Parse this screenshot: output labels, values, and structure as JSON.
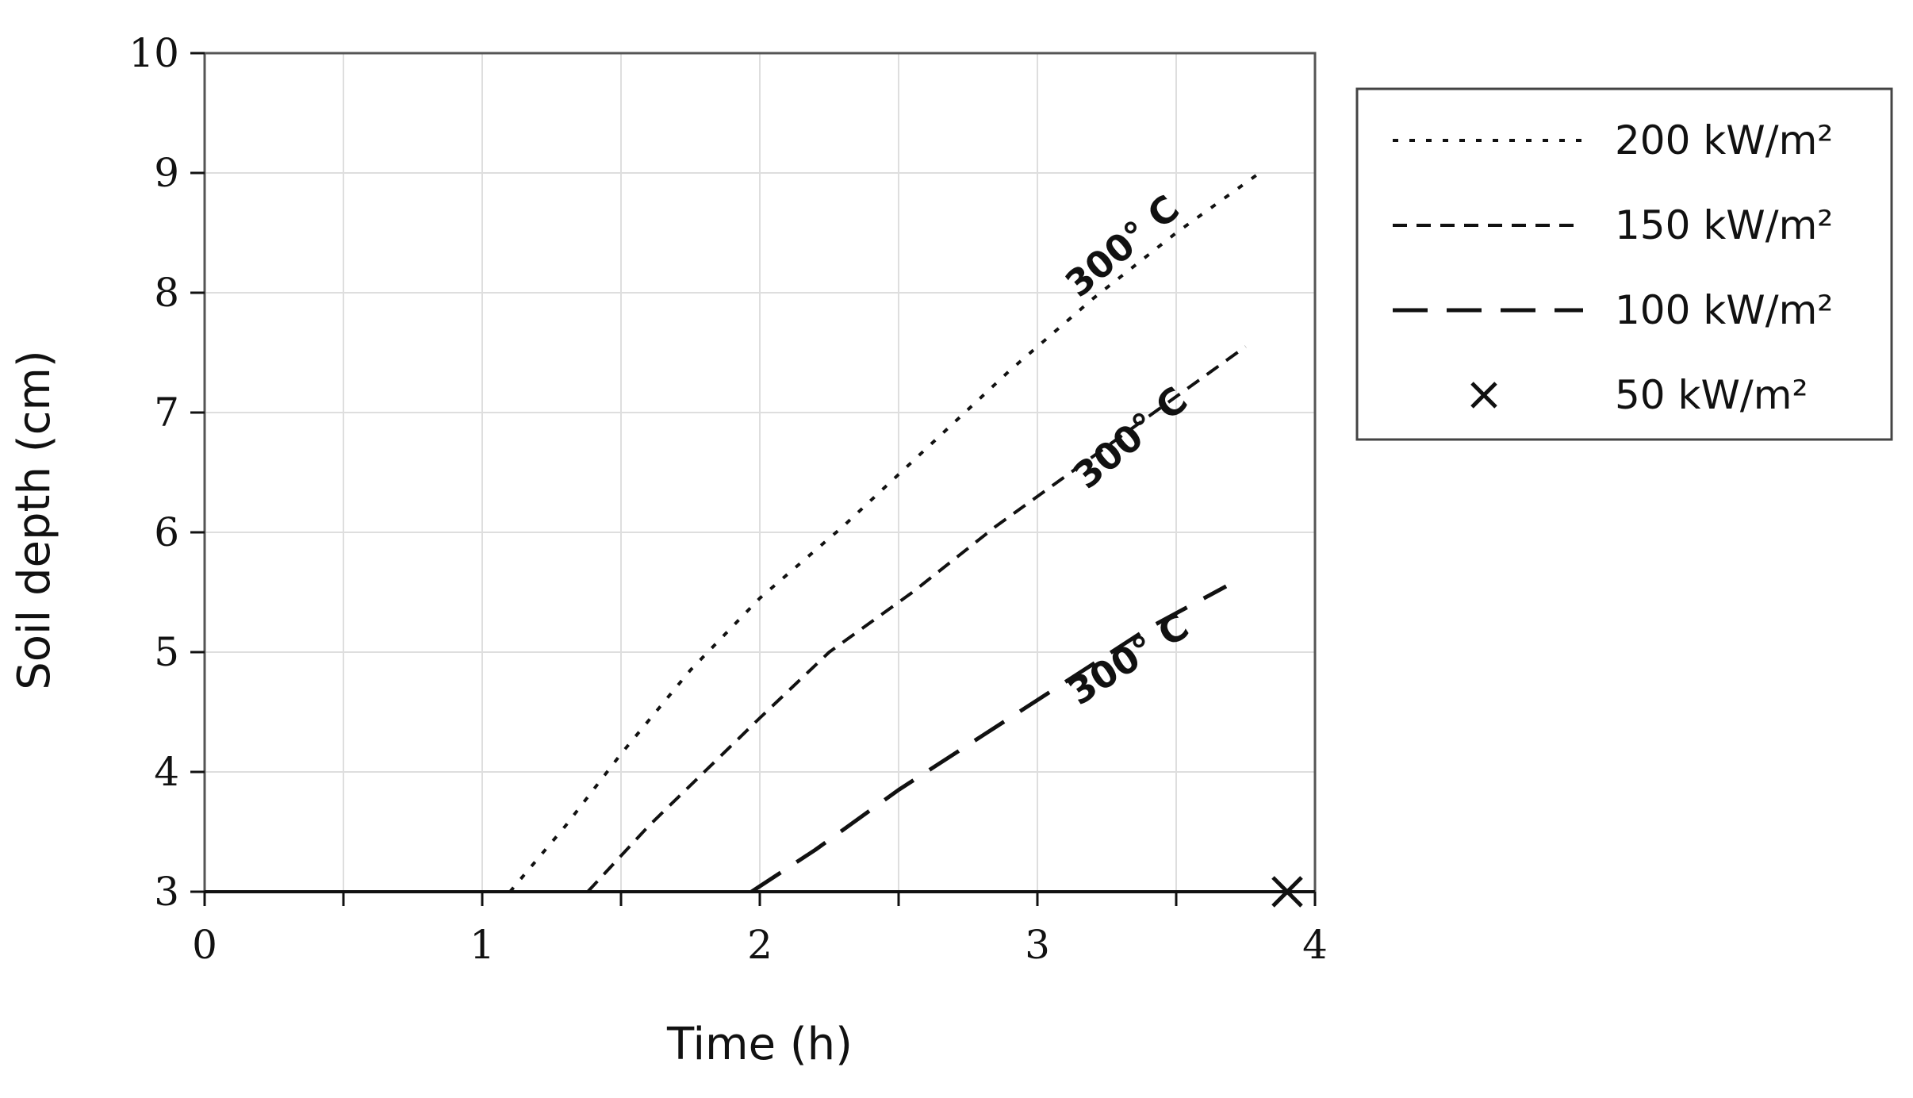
{
  "chart_data": {
    "type": "line",
    "title": "",
    "xlabel": "Time (h)",
    "ylabel": "Soil depth (cm)",
    "xlim": [
      0,
      4
    ],
    "ylim": [
      3,
      10
    ],
    "xticks": [
      "0",
      "1",
      "2",
      "3",
      "4"
    ],
    "yticks": [
      "3",
      "4",
      "5",
      "6",
      "7",
      "8",
      "9",
      "10"
    ],
    "grid": true,
    "legend_placement": "outside-right",
    "series": [
      {
        "name": "200 kW/m²",
        "style": "dotted",
        "color": "#111111",
        "x": [
          1.1,
          1.3,
          1.5,
          1.75,
          2.0,
          2.3,
          2.6,
          2.9,
          3.2,
          3.5,
          3.8
        ],
        "y": [
          3.0,
          3.55,
          4.15,
          4.85,
          5.45,
          6.05,
          6.7,
          7.35,
          7.95,
          8.5,
          9.0
        ]
      },
      {
        "name": "150 kW/m²",
        "style": "dashed",
        "color": "#111111",
        "x": [
          1.38,
          1.6,
          1.8,
          2.0,
          2.25,
          2.55,
          2.85,
          3.15,
          3.45,
          3.75
        ],
        "y": [
          3.0,
          3.55,
          4.0,
          4.45,
          5.0,
          5.5,
          6.05,
          6.55,
          7.05,
          7.55
        ]
      },
      {
        "name": "100 kW/m²",
        "style": "long-dashed",
        "color": "#111111",
        "x": [
          1.97,
          2.2,
          2.5,
          2.8,
          3.1,
          3.4,
          3.68
        ],
        "y": [
          3.0,
          3.35,
          3.85,
          4.3,
          4.75,
          5.2,
          5.55
        ]
      },
      {
        "name": "50 kW/m²",
        "style": "marker-x",
        "color": "#111111",
        "x": [
          3.9
        ],
        "y": [
          3.0
        ]
      }
    ],
    "annotations": [
      {
        "text": "300° C",
        "x": 3.15,
        "y": 7.95,
        "angle": -40
      },
      {
        "text": "300° C",
        "x": 3.18,
        "y": 6.35,
        "angle": -40
      },
      {
        "text": "300° C",
        "x": 3.15,
        "y": 4.55,
        "angle": -33
      }
    ]
  }
}
